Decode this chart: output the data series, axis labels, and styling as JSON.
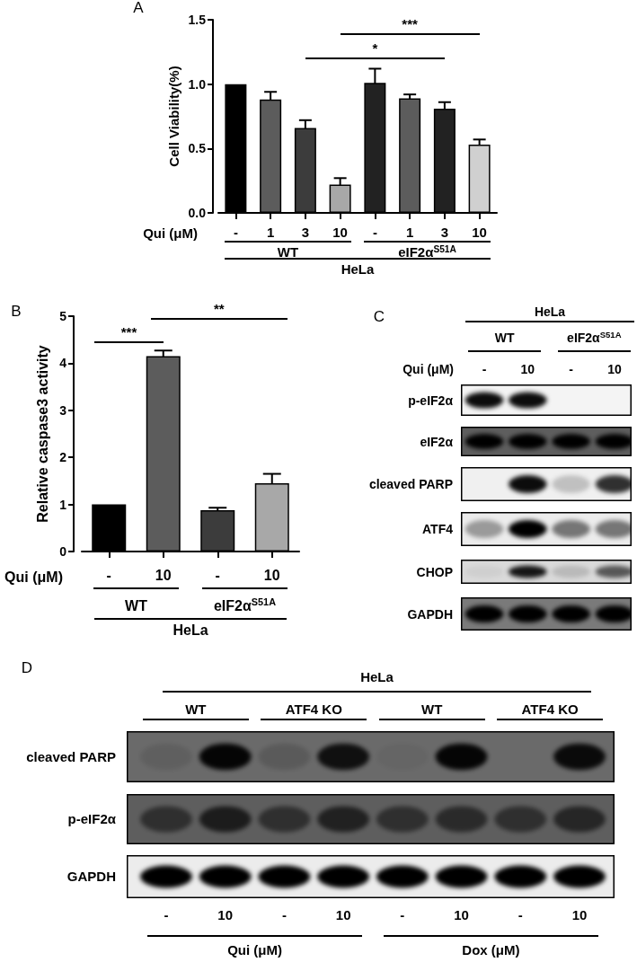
{
  "chart_data": [
    {
      "type": "bar",
      "title": "A",
      "ylabel": "Cell Viability(%)",
      "xlabel": "Qui (μM)",
      "categories": [
        "-",
        "1",
        "3",
        "10",
        "-",
        "1",
        "3",
        "10"
      ],
      "values": [
        1.0,
        0.88,
        0.66,
        0.22,
        1.01,
        0.89,
        0.81,
        0.53
      ],
      "errors": [
        null,
        0.06,
        0.06,
        0.05,
        0.11,
        0.03,
        0.05,
        0.04
      ],
      "colors": [
        "#000000",
        "#5c5c5c",
        "#3c3c3c",
        "#a8a8a8",
        "#222222",
        "#5c5c5c",
        "#222222",
        "#d0d0d0"
      ],
      "ylim": [
        0,
        1.5
      ],
      "yticks": [
        {
          "value": 0,
          "label": "0.0"
        },
        0.5,
        {
          "value": 1,
          "label": "1.0"
        },
        1.5
      ],
      "annotations": [
        "***",
        "*",
        "WT",
        "eIF2α$^{S51A}$",
        "HeLa"
      ]
    },
    {
      "type": "bar",
      "title": "B",
      "ylabel": "Relative caspase3 activity",
      "xlabel": "Qui (μM)",
      "categories": [
        "-",
        "10",
        "-",
        "10"
      ],
      "values": [
        1.0,
        4.15,
        0.88,
        1.45
      ],
      "errors": [
        null,
        0.12,
        0.05,
        0.2
      ],
      "colors": [
        "#000000",
        "#5c5c5c",
        "#3c3c3c",
        "#a8a8a8"
      ],
      "ylim": [
        0,
        5
      ],
      "yticks": [
        0,
        1,
        2,
        3,
        4,
        5
      ],
      "annotations": [
        "***",
        "**",
        "WT",
        "eIF2α$^{S51A}$",
        "HeLa"
      ]
    },
    {
      "type": "other",
      "title": "C",
      "xlabel": "Qui (μM)",
      "categories": [
        "-",
        "10",
        "-",
        "10"
      ],
      "annotations": [
        "HeLa",
        "WT",
        "eIF2α$^{S51A}$",
        "p-eIF2α",
        "eIF2α",
        "cleaved PARP",
        "ATF4",
        "CHOP",
        "GAPDH"
      ]
    },
    {
      "type": "other",
      "title": "D",
      "categories": [
        "-",
        "10",
        "-",
        "10",
        "-",
        "10",
        "-",
        "10"
      ],
      "annotations": [
        "HeLa",
        "WT",
        "ATF4 KO",
        "WT",
        "ATF4 KO",
        "cleaved PARP",
        "p-eIF2α",
        "GAPDH",
        "Qui (μM)",
        "Dox (μM)"
      ]
    }
  ]
}
